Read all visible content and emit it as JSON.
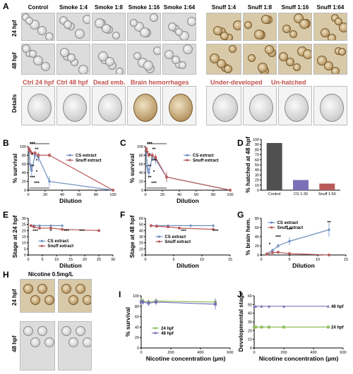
{
  "panel_labels": {
    "A": "A",
    "B": "B",
    "C": "C",
    "D": "D",
    "E": "E",
    "F": "F",
    "G": "G",
    "H": "H",
    "I": "I",
    "J": "J"
  },
  "panel_a": {
    "columns": [
      "Control",
      "Smoke 1:4",
      "Smoke 1:8",
      "Smoke 1:16",
      "Smoke 1:64",
      "Snuff 1:4",
      "Snuff 1:8",
      "Snuff 1:16",
      "Snuff 1:64"
    ],
    "rows": [
      "24 hpf",
      "48 hpf",
      "Details"
    ],
    "details": [
      "Ctrl 24 hpf",
      "Ctrl 48 hpf",
      "Dead emb.",
      "Brain hemorrhages",
      "Under-developed",
      "Un-hatched"
    ]
  },
  "panel_h": {
    "title": "Nicotine 0.5mg/L",
    "rows": [
      "24 hpf",
      "48 hpf"
    ]
  },
  "colors": {
    "cs": "#6f8fc0",
    "snuff": "#b85a5a",
    "dark": "#505050",
    "green": "#8fbf5f",
    "purple": "#7a70b8",
    "red": "#c0504d"
  },
  "chart_data": [
    {
      "id": "B",
      "type": "line",
      "xlabel": "Dilution",
      "ylabel": "% survival",
      "xlim": [
        0,
        100
      ],
      "ylim": [
        0,
        100
      ],
      "xticks": [
        0,
        20,
        40,
        60,
        80,
        100
      ],
      "yticks": [
        0,
        20,
        40,
        60,
        80,
        100
      ],
      "series": [
        {
          "name": "CS    extract",
          "x": [
            1,
            2,
            4,
            8,
            12,
            25,
            100
          ],
          "y": [
            90,
            60,
            45,
            80,
            75,
            20,
            0
          ],
          "err": [
            5,
            15,
            12,
            8,
            10,
            12,
            0
          ]
        },
        {
          "name": "Snuff extract",
          "x": [
            1,
            2,
            4,
            8,
            12,
            25,
            100
          ],
          "y": [
            95,
            90,
            85,
            85,
            80,
            80,
            0
          ],
          "err": [
            3,
            4,
            5,
            5,
            6,
            5,
            0
          ]
        }
      ],
      "annotations": [
        "***",
        "**",
        "*",
        "*",
        "**",
        "*",
        "***",
        "***"
      ],
      "legend": "right"
    },
    {
      "id": "C",
      "type": "line",
      "xlabel": "Dilution",
      "ylabel": "% survival",
      "xlim": [
        0,
        100
      ],
      "ylim": [
        0,
        100
      ],
      "xticks": [
        0,
        20,
        40,
        60,
        80,
        100
      ],
      "yticks": [
        0,
        20,
        40,
        60,
        80,
        100
      ],
      "series": [
        {
          "name": "CS    extract",
          "x": [
            1,
            2,
            4,
            8,
            12,
            25,
            100
          ],
          "y": [
            85,
            55,
            40,
            75,
            70,
            30,
            0
          ],
          "err": [
            6,
            15,
            12,
            8,
            10,
            12,
            0
          ]
        },
        {
          "name": "Snuff extract",
          "x": [
            1,
            2,
            4,
            8,
            12,
            25,
            100
          ],
          "y": [
            95,
            88,
            80,
            80,
            75,
            30,
            0
          ],
          "err": [
            3,
            4,
            5,
            6,
            8,
            10,
            0
          ]
        }
      ],
      "annotations": [
        "***",
        "**",
        "*",
        "***",
        "**",
        "*",
        "**",
        "***"
      ],
      "legend": "right"
    },
    {
      "id": "D",
      "type": "bar",
      "ylabel": "% hatched at 48 hpf",
      "ylim": [
        0,
        100
      ],
      "yticks": [
        0,
        10,
        20,
        30,
        40,
        50,
        60,
        70,
        80,
        90,
        100
      ],
      "categories": [
        "Control",
        "CS 1:30",
        "Snuff 1:50"
      ],
      "values": [
        93,
        20,
        13
      ],
      "colors": [
        "#505050",
        "#7a70b8",
        "#b85a5a"
      ]
    },
    {
      "id": "E",
      "type": "line",
      "xlabel": "Dilution",
      "ylabel": "Stage at 24 hpf",
      "xlim": [
        0,
        30
      ],
      "ylim": [
        0,
        30
      ],
      "xticks": [
        0,
        5,
        10,
        15,
        20,
        25,
        30
      ],
      "yticks": [
        0,
        5,
        10,
        15,
        20,
        25,
        30
      ],
      "series": [
        {
          "name": "CS    extract",
          "x": [
            1,
            2,
            4,
            8,
            12
          ],
          "y": [
            24,
            24,
            24,
            24,
            24
          ]
        },
        {
          "name": "Snuff extract",
          "x": [
            1,
            2,
            4,
            8,
            12,
            25
          ],
          "y": [
            24,
            23,
            22,
            22,
            21,
            20
          ]
        }
      ],
      "annotations": [
        "***",
        "*",
        "***",
        "***"
      ],
      "legend": "bottom-left"
    },
    {
      "id": "F",
      "type": "line",
      "xlabel": "Dilution",
      "ylabel": "Stage at 48 hpf",
      "xlim": [
        0,
        15
      ],
      "ylim": [
        0,
        60
      ],
      "xticks": [
        0,
        5,
        10,
        15
      ],
      "yticks": [
        0,
        10,
        20,
        30,
        40,
        50,
        60
      ],
      "series": [
        {
          "name": "CS    extract",
          "x": [
            1,
            2,
            4,
            8,
            12
          ],
          "y": [
            48,
            48,
            48,
            48,
            48
          ]
        },
        {
          "name": "Snuff extract",
          "x": [
            1,
            2,
            4,
            6,
            12
          ],
          "y": [
            48,
            47,
            46,
            44,
            42
          ]
        }
      ],
      "annotations": [
        "***",
        "***"
      ],
      "legend": "center-left"
    },
    {
      "id": "G",
      "type": "line",
      "xlabel": "Dilution",
      "ylabel": "% brain hem.",
      "xlim": [
        0,
        15
      ],
      "ylim": [
        0,
        80
      ],
      "xticks": [
        0,
        5,
        10,
        15
      ],
      "yticks": [
        0,
        20,
        40,
        60,
        80
      ],
      "series": [
        {
          "name": "CS    extract",
          "x": [
            1,
            2,
            3,
            5,
            12
          ],
          "y": [
            3,
            10,
            20,
            30,
            55
          ],
          "err": [
            2,
            4,
            5,
            8,
            15
          ]
        },
        {
          "name": "Snuff extract",
          "x": [
            1,
            2,
            3,
            5,
            12
          ],
          "y": [
            2,
            5,
            6,
            3,
            0
          ],
          "err": [
            1,
            2,
            2,
            2,
            0
          ]
        }
      ],
      "annotations": [
        "*",
        "***",
        "***",
        "**"
      ],
      "legend": "top-left"
    },
    {
      "id": "I",
      "type": "line",
      "xlabel": "Nicotine concentration (µm)",
      "ylabel": "% survival",
      "xlim": [
        0,
        600
      ],
      "ylim": [
        0,
        100
      ],
      "xticks": [
        0,
        200,
        400,
        600
      ],
      "yticks": [
        0,
        20,
        40,
        60,
        80,
        100
      ],
      "series": [
        {
          "name": "24 hpf",
          "x": [
            0,
            10,
            50,
            100,
            500
          ],
          "y": [
            90,
            90,
            88,
            90,
            88
          ],
          "err": [
            5,
            5,
            5,
            6,
            8
          ]
        },
        {
          "name": "48 hpf",
          "x": [
            0,
            10,
            50,
            100,
            500
          ],
          "y": [
            88,
            88,
            86,
            88,
            84
          ],
          "err": [
            5,
            5,
            6,
            6,
            10
          ]
        }
      ],
      "legend": "bottom-left"
    },
    {
      "id": "J",
      "type": "line",
      "xlabel": "Nicotine concentration (µm)",
      "ylabel": "Developmental stage",
      "xlim": [
        0,
        600
      ],
      "ylim": [
        0,
        60
      ],
      "xticks": [
        0,
        200,
        400,
        600
      ],
      "yticks": [
        0,
        10,
        20,
        30,
        40,
        50,
        60
      ],
      "series": [
        {
          "name": "48 hpf",
          "x": [
            0,
            10,
            50,
            100,
            200,
            500
          ],
          "y": [
            48,
            48,
            48,
            48,
            48,
            48
          ]
        },
        {
          "name": "24 hpf",
          "x": [
            0,
            10,
            50,
            100,
            200,
            500
          ],
          "y": [
            24,
            24,
            24,
            24,
            24,
            24
          ]
        }
      ],
      "legend": "right"
    }
  ]
}
